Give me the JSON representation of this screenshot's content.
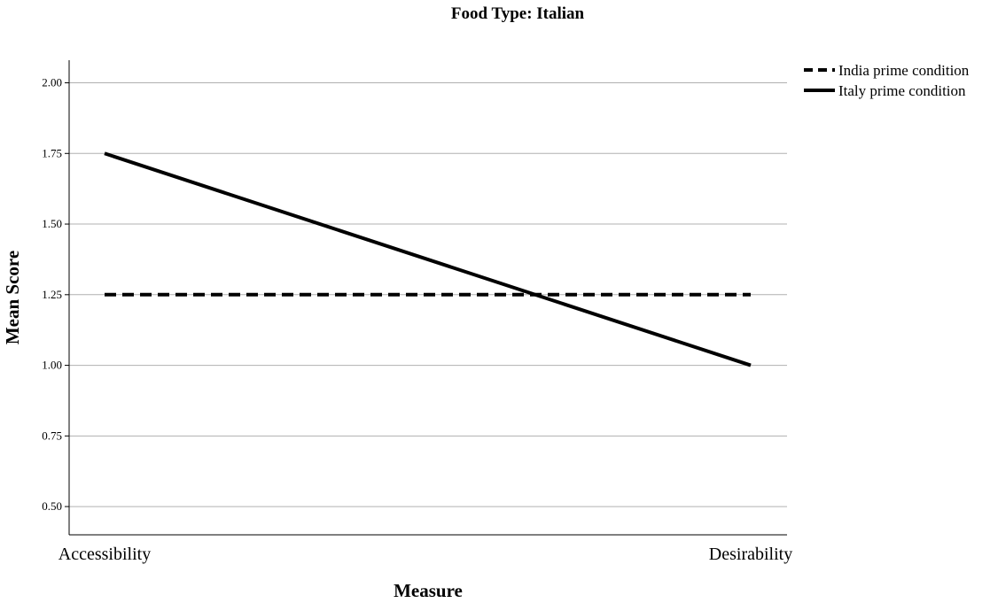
{
  "chart_data": {
    "type": "line",
    "title": "Food Type: Italian",
    "xlabel": "Measure",
    "ylabel": "Mean Score",
    "categories": [
      "Accessibility",
      "Desirability"
    ],
    "ylim": [
      0.4,
      2.08
    ],
    "yticks": [
      "0.50",
      "0.75",
      "1.00",
      "1.25",
      "1.50",
      "1.75",
      "2.00"
    ],
    "grid": true,
    "legend_position": "top-right",
    "series": [
      {
        "name": "India prime condition",
        "values": [
          1.25,
          1.25
        ],
        "style": "dashed",
        "color": "#000000"
      },
      {
        "name": "Italy prime condition",
        "values": [
          1.75,
          1.0
        ],
        "style": "solid",
        "color": "#000000"
      }
    ]
  }
}
